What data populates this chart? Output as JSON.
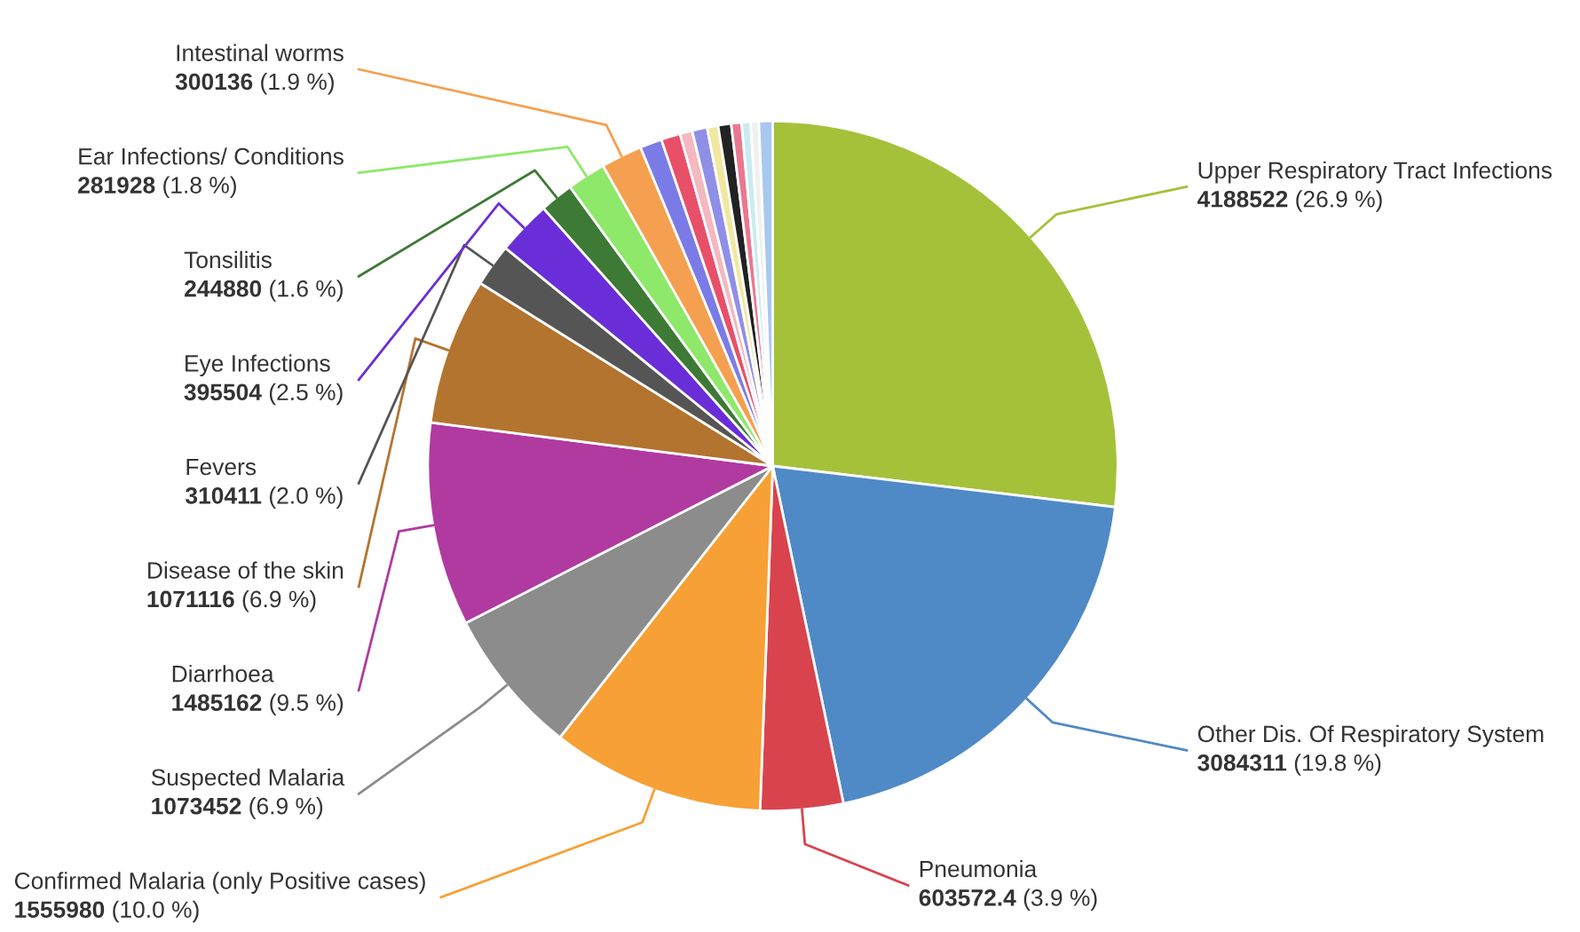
{
  "chart_data": {
    "type": "pie",
    "categories": [
      "Upper Respiratory Tract Infections",
      "Other Dis. Of Respiratory System",
      "Pneumonia",
      "Confirmed Malaria (only Positive cases)",
      "Suspected Malaria",
      "Diarrhoea",
      "Disease of the skin",
      "Fevers",
      "Eye Infections",
      "Tonsilitis",
      "Ear Infections/ Conditions",
      "Intestinal worms",
      null,
      null,
      null,
      null,
      null,
      null,
      null,
      null,
      null,
      null
    ],
    "values": [
      4188522,
      3084311,
      603572.4,
      1555980,
      1073452,
      1485162,
      1071116,
      310411,
      395504,
      244880,
      281928,
      300136,
      160000,
      140000,
      90000,
      110000,
      80000,
      95000,
      75000,
      65000,
      60000,
      100000
    ],
    "value_labels": [
      "4188522 (26.9 %)",
      "3084311 (19.8 %)",
      "603572.4 (3.9 %)",
      "1555980 (10.0 %)",
      "1073452 (6.9 %)",
      "1485162 (9.5 %)",
      "1071116 (6.9 %)",
      "310411 (2.0 %)",
      "395504 (2.5 %)",
      "244880 (1.6 %)",
      "281928 (1.8 %)",
      "300136 (1.9 %)",
      null,
      null,
      null,
      null,
      null,
      null,
      null,
      null,
      null,
      null
    ],
    "colors": [
      "#a5c13a",
      "#4f8ac6",
      "#d9434e",
      "#f7a035",
      "#8c8c8c",
      "#b03aa0",
      "#b3742f",
      "#555555",
      "#6a2ed8",
      "#3d7a35",
      "#8ee86a",
      "#f5a050",
      "#7b7be8",
      "#e8506a",
      "#f4b8c0",
      "#8f8fe8",
      "#f0e8a0",
      "#222222",
      "#e87890",
      "#c8ecf0",
      "#f0f0f0",
      "#a8c8f0"
    ],
    "legend": false
  }
}
